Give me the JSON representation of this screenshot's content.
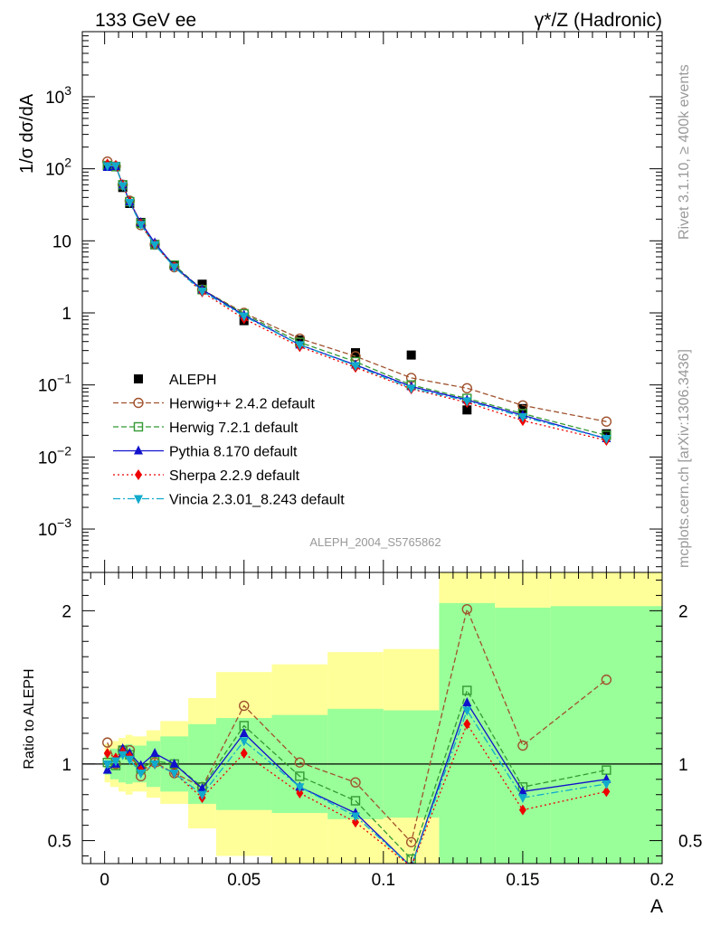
{
  "header": {
    "left": "133 GeV ee",
    "right": "γ*/Z (Hadronic)"
  },
  "side": {
    "rivet": "Rivet 3.1.10, ≥ 400k events",
    "mcplots": "mcplots.cern.ch [arXiv:1306.3436]"
  },
  "analysis_id": "ALEPH_2004_S5765862",
  "chart_data": [
    {
      "type": "scatter",
      "panel": "main",
      "title": "",
      "xlabel": "",
      "ylabel": "1/σ  dσ/dA",
      "yscale": "log",
      "xlim": [
        -0.008,
        0.2
      ],
      "ylim": [
        0.00025,
        8000
      ],
      "y_ticks": [
        {
          "v": 0.001,
          "label": "10",
          "sup": "−3"
        },
        {
          "v": 0.01,
          "label": "10",
          "sup": "−2"
        },
        {
          "v": 0.1,
          "label": "10",
          "sup": "−1"
        },
        {
          "v": 1,
          "label": "1",
          "sup": ""
        },
        {
          "v": 10,
          "label": "10",
          "sup": ""
        },
        {
          "v": 100,
          "label": "10",
          "sup": "2"
        },
        {
          "v": 1000,
          "label": "10",
          "sup": "3"
        }
      ],
      "x": [
        0.001,
        0.004,
        0.0065,
        0.009,
        0.013,
        0.018,
        0.025,
        0.035,
        0.05,
        0.07,
        0.09,
        0.11,
        0.13,
        0.15,
        0.18
      ],
      "series": [
        {
          "name": "ALEPH",
          "color": "#000000",
          "marker": "square",
          "line": "none",
          "values": [
            110,
            108,
            55,
            33,
            18,
            8.8,
            4.6,
            2.5,
            0.78,
            0.42,
            0.28,
            0.26,
            0.045,
            0.047,
            0.021
          ]
        },
        {
          "name": "Herwig++ 2.4.2 default",
          "color": "#a0522d",
          "marker": "circle-open",
          "line": "dashed",
          "values": [
            126,
            108,
            60,
            36,
            16.5,
            8.9,
            4.3,
            2.1,
            1.0,
            0.44,
            0.25,
            0.125,
            0.09,
            0.052,
            0.031
          ]
        },
        {
          "name": "Herwig 7.2.1 default",
          "color": "#339933",
          "marker": "square-open",
          "line": "dashed",
          "values": [
            111,
            107,
            60,
            35,
            17.5,
            8.9,
            4.6,
            2.1,
            0.97,
            0.39,
            0.21,
            0.1,
            0.065,
            0.04,
            0.02
          ]
        },
        {
          "name": "Pythia 8.170 default",
          "color": "#1111cc",
          "marker": "triangle-up",
          "line": "solid",
          "values": [
            105,
            108,
            60,
            35,
            18,
            9.4,
            4.4,
            2.1,
            0.93,
            0.36,
            0.19,
            0.095,
            0.062,
            0.038,
            0.018
          ]
        },
        {
          "name": "Sherpa 2.2.9 default",
          "color": "#ee0000",
          "marker": "diamond",
          "line": "dotted",
          "values": [
            117,
            112,
            59,
            35,
            17.2,
            8.8,
            4.35,
            1.95,
            0.83,
            0.34,
            0.175,
            0.088,
            0.057,
            0.032,
            0.017
          ]
        },
        {
          "name": "Vincia 2.3.01_8.243 default",
          "color": "#11aacc",
          "marker": "triangle-down",
          "line": "dashdot",
          "values": [
            110,
            110,
            58,
            34,
            16.8,
            8.8,
            4.3,
            2.0,
            0.9,
            0.36,
            0.185,
            0.09,
            0.06,
            0.036,
            0.018
          ]
        }
      ],
      "legend_position": "lower-left"
    },
    {
      "type": "line",
      "panel": "ratio",
      "title": "",
      "xlabel": "A",
      "ylabel": "Ratio to ALEPH",
      "xlim": [
        -0.008,
        0.2
      ],
      "ylim": [
        0.35,
        2.25
      ],
      "x_ticks": [
        {
          "v": 0,
          "label": "0"
        },
        {
          "v": 0.05,
          "label": "0.05"
        },
        {
          "v": 0.1,
          "label": "0.1"
        },
        {
          "v": 0.15,
          "label": "0.15"
        },
        {
          "v": 0.2,
          "label": "0.2"
        }
      ],
      "y_ticks": [
        {
          "v": 0.5,
          "label": "0.5"
        },
        {
          "v": 1,
          "label": "1"
        },
        {
          "v": 2,
          "label": "2"
        }
      ],
      "uncertainty_bins": [
        {
          "x0": 0.0,
          "x1": 0.002,
          "inner": [
            0.93,
            1.07
          ],
          "outer": [
            0.88,
            1.13
          ]
        },
        {
          "x0": 0.002,
          "x1": 0.005,
          "inner": [
            0.9,
            1.1
          ],
          "outer": [
            0.85,
            1.15
          ]
        },
        {
          "x0": 0.005,
          "x1": 0.0075,
          "inner": [
            0.88,
            1.12
          ],
          "outer": [
            0.82,
            1.17
          ]
        },
        {
          "x0": 0.0075,
          "x1": 0.01,
          "inner": [
            0.87,
            1.13
          ],
          "outer": [
            0.8,
            1.19
          ]
        },
        {
          "x0": 0.01,
          "x1": 0.015,
          "inner": [
            0.88,
            1.12
          ],
          "outer": [
            0.82,
            1.18
          ]
        },
        {
          "x0": 0.015,
          "x1": 0.02,
          "inner": [
            0.85,
            1.15
          ],
          "outer": [
            0.78,
            1.22
          ]
        },
        {
          "x0": 0.02,
          "x1": 0.03,
          "inner": [
            0.82,
            1.18
          ],
          "outer": [
            0.74,
            1.28
          ]
        },
        {
          "x0": 0.03,
          "x1": 0.04,
          "inner": [
            0.74,
            1.26
          ],
          "outer": [
            0.58,
            1.43
          ]
        },
        {
          "x0": 0.04,
          "x1": 0.06,
          "inner": [
            0.7,
            1.3
          ],
          "outer": [
            0.4,
            1.6
          ]
        },
        {
          "x0": 0.06,
          "x1": 0.08,
          "inner": [
            0.68,
            1.32
          ],
          "outer": [
            0.35,
            1.65
          ]
        },
        {
          "x0": 0.08,
          "x1": 0.1,
          "inner": [
            0.64,
            1.36
          ],
          "outer": [
            0.35,
            1.73
          ]
        },
        {
          "x0": 0.1,
          "x1": 0.12,
          "inner": [
            0.65,
            1.35
          ],
          "outer": [
            0.35,
            1.75
          ]
        },
        {
          "x0": 0.12,
          "x1": 0.14,
          "inner": [
            0.35,
            2.05
          ],
          "outer": [
            0.35,
            2.25
          ]
        },
        {
          "x0": 0.14,
          "x1": 0.16,
          "inner": [
            0.35,
            2.02
          ],
          "outer": [
            0.35,
            2.25
          ]
        },
        {
          "x0": 0.16,
          "x1": 0.2,
          "inner": [
            0.35,
            2.03
          ],
          "outer": [
            0.35,
            2.25
          ]
        }
      ],
      "reference_line": 1,
      "x": [
        0.001,
        0.004,
        0.0065,
        0.009,
        0.013,
        0.018,
        0.025,
        0.035,
        0.05,
        0.07,
        0.09,
        0.11,
        0.13,
        0.15,
        0.18
      ],
      "series": [
        {
          "name": "Herwig++ 2.4.2 default",
          "color": "#a0522d",
          "marker": "circle-open",
          "line": "dashed",
          "values": [
            1.14,
            1.0,
            1.09,
            1.09,
            0.92,
            1.01,
            0.94,
            0.85,
            1.38,
            1.01,
            0.88,
            0.49,
            2.01,
            1.12,
            1.55
          ]
        },
        {
          "name": "Herwig 7.2.1 default",
          "color": "#339933",
          "marker": "square-open",
          "line": "dashed",
          "values": [
            1.01,
            0.99,
            1.09,
            1.06,
            0.97,
            1.02,
            1.0,
            0.85,
            1.25,
            0.92,
            0.76,
            0.38,
            1.48,
            0.85,
            0.96
          ]
        },
        {
          "name": "Pythia 8.170 default",
          "color": "#1111cc",
          "marker": "triangle-up",
          "line": "solid",
          "values": [
            0.96,
            1.0,
            1.1,
            1.07,
            0.99,
            1.07,
            1.0,
            0.84,
            1.2,
            0.85,
            0.68,
            0.33,
            1.4,
            0.82,
            0.9
          ]
        },
        {
          "name": "Sherpa 2.2.9 default",
          "color": "#ee0000",
          "marker": "diamond",
          "line": "dotted",
          "values": [
            1.07,
            1.04,
            1.08,
            1.05,
            0.96,
            1.0,
            0.94,
            0.78,
            1.07,
            0.81,
            0.62,
            0.33,
            1.26,
            0.7,
            0.82
          ]
        },
        {
          "name": "Vincia 2.3.01_8.243 default",
          "color": "#11aacc",
          "marker": "triangle-down",
          "line": "dashdot",
          "values": [
            1.0,
            1.02,
            1.06,
            1.03,
            0.94,
            1.0,
            0.94,
            0.8,
            1.15,
            0.85,
            0.66,
            0.33,
            1.35,
            0.78,
            0.87
          ]
        }
      ]
    }
  ]
}
